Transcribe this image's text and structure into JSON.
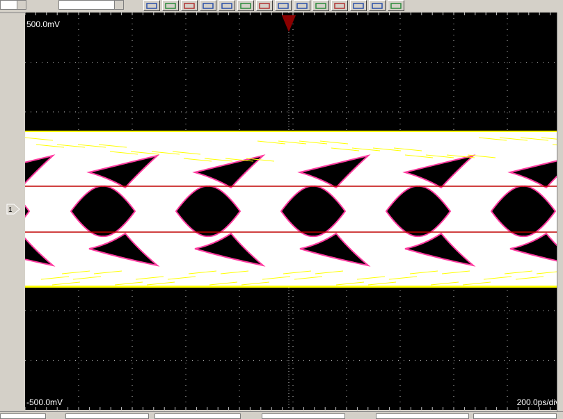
{
  "scope": {
    "scale_top": "500.0mV",
    "scale_bottom": "-500.0mV",
    "timebase": "200.0ps/div",
    "marker": "M1",
    "channel": "1"
  },
  "colors": {
    "background": "#000000",
    "grid": "#c8c8c8",
    "trace": "#ffffff",
    "trace_edge": "#ffff00",
    "limit_lines": "#c00000",
    "trigger": "#8b0000"
  },
  "toolbar": {
    "selects": [
      "",
      ""
    ],
    "buttons": [
      "measure-icon",
      "measure-icon",
      "measure-icon",
      "measure-icon",
      "measure-icon",
      "bars-icon",
      "bars-icon",
      "measure-icon",
      "cursor-icon",
      "level-icon",
      "marker-icon",
      "marker-icon",
      "pulse-icon",
      "measure-icon"
    ]
  }
}
